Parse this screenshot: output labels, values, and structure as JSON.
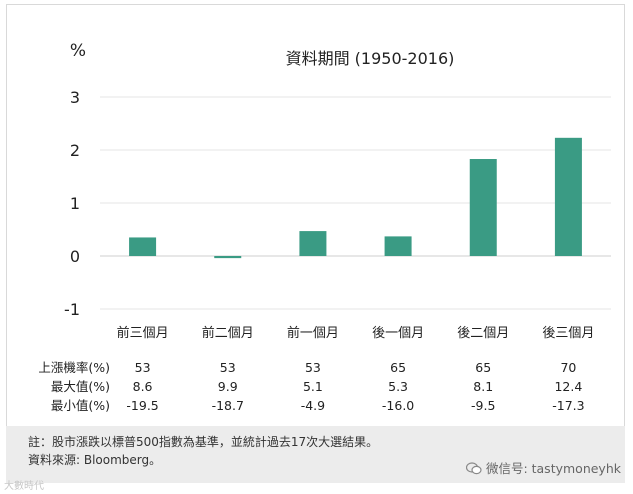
{
  "chart_data": {
    "type": "bar",
    "title": "資料期間 (1950-2016)",
    "ylabel": "%",
    "ylim": [
      -1,
      3
    ],
    "yticks": [
      3,
      2,
      1,
      0,
      -1
    ],
    "categories": [
      "前三個月",
      "前二個月",
      "前一個月",
      "後一個月",
      "後二個月",
      "後三個月"
    ],
    "values": [
      0.35,
      -0.04,
      0.47,
      0.37,
      1.83,
      2.23
    ],
    "bar_color": "#3a9b84",
    "grid": true
  },
  "stats_table": {
    "rows": [
      {
        "label": "上漲機率(%)",
        "values": [
          "53",
          "53",
          "53",
          "65",
          "65",
          "70"
        ]
      },
      {
        "label": "最大值(%)",
        "values": [
          "8.6",
          "9.9",
          "5.1",
          "5.3",
          "8.1",
          "12.4"
        ]
      },
      {
        "label": "最小值(%)",
        "values": [
          "-19.5",
          "-18.7",
          "-4.9",
          "-16.0",
          "-9.5",
          "-17.3"
        ]
      }
    ]
  },
  "footer": {
    "note": "註：股市漲跌以標普500指數為基準，並統計過去17次大選結果。",
    "source": "資料來源: Bloomberg。"
  },
  "watermark": {
    "wechat_icon": "wechat-bubble-icon",
    "text": "微信号: tastymoneyhk",
    "left_text": "大數時代"
  }
}
